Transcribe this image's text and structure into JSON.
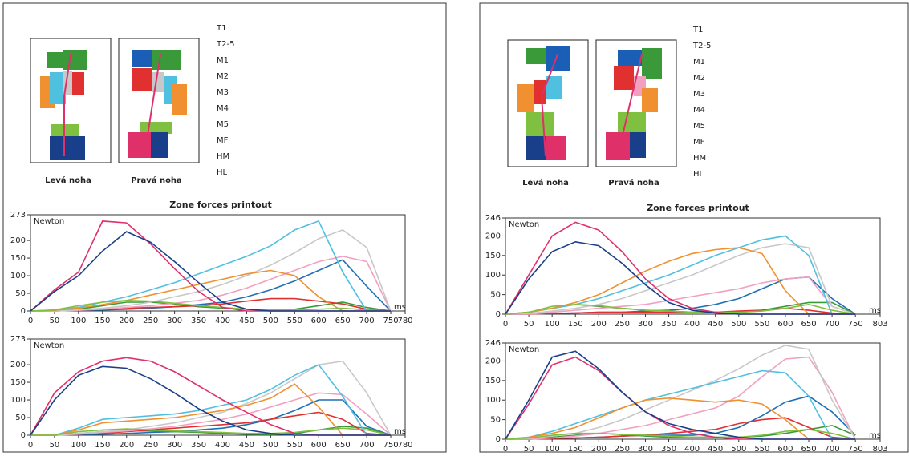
{
  "foot_labels": [
    [
      "Levá noha",
      "Pravá noha"
    ],
    [
      "Levá noha",
      "Pravá noha"
    ]
  ],
  "chart_data": [
    {
      "type": "line",
      "title": "Zone forces printout",
      "y_label": "Newton",
      "x_label": "ms",
      "x": [
        0,
        50,
        100,
        150,
        200,
        250,
        300,
        350,
        400,
        450,
        500,
        550,
        600,
        650,
        700,
        750
      ],
      "xlim": [
        0,
        780
      ],
      "xticks": [
        0,
        50,
        100,
        150,
        200,
        250,
        300,
        350,
        400,
        450,
        500,
        550,
        600,
        650,
        700,
        750,
        780
      ],
      "ylim": [
        0,
        273
      ],
      "yticks": [
        0,
        50,
        100,
        150,
        200,
        273
      ],
      "series": [
        {
          "name": "T1",
          "color": "#1f6fb5",
          "values": [
            0,
            0,
            2,
            3,
            5,
            8,
            12,
            18,
            25,
            40,
            60,
            85,
            115,
            145,
            70,
            0
          ]
        },
        {
          "name": "T2-5",
          "color": "#3a9a3a",
          "values": [
            0,
            0,
            5,
            15,
            25,
            25,
            20,
            12,
            8,
            5,
            3,
            5,
            15,
            25,
            10,
            0
          ]
        },
        {
          "name": "M1",
          "color": "#e03030",
          "values": [
            0,
            0,
            2,
            5,
            8,
            10,
            12,
            15,
            20,
            28,
            35,
            35,
            28,
            20,
            5,
            0
          ]
        },
        {
          "name": "M2",
          "color": "#f2a0c0",
          "values": [
            0,
            0,
            2,
            5,
            10,
            15,
            22,
            30,
            45,
            65,
            90,
            115,
            140,
            155,
            140,
            0
          ]
        },
        {
          "name": "M3",
          "color": "#c8c8c8",
          "values": [
            0,
            0,
            3,
            8,
            15,
            25,
            40,
            55,
            75,
            100,
            130,
            165,
            205,
            230,
            180,
            0
          ]
        },
        {
          "name": "M4",
          "color": "#50c0e0",
          "values": [
            0,
            2,
            10,
            25,
            40,
            60,
            80,
            105,
            130,
            155,
            185,
            230,
            255,
            110,
            0,
            0
          ]
        },
        {
          "name": "M5",
          "color": "#f09030",
          "values": [
            0,
            2,
            8,
            18,
            30,
            45,
            60,
            75,
            90,
            105,
            115,
            100,
            40,
            0,
            0,
            0
          ]
        },
        {
          "name": "MF",
          "color": "#80c040",
          "values": [
            0,
            3,
            15,
            25,
            30,
            28,
            22,
            15,
            10,
            5,
            3,
            3,
            5,
            8,
            3,
            0
          ]
        },
        {
          "name": "HM",
          "color": "#e0306a",
          "values": [
            0,
            60,
            110,
            255,
            250,
            190,
            120,
            55,
            10,
            0,
            0,
            0,
            0,
            0,
            0,
            0
          ]
        },
        {
          "name": "HL",
          "color": "#1a3f8a",
          "values": [
            0,
            55,
            100,
            170,
            225,
            195,
            140,
            80,
            25,
            5,
            0,
            0,
            0,
            0,
            0,
            0
          ]
        }
      ]
    },
    {
      "type": "line",
      "y_label": "Newton",
      "x_label": "ms",
      "x": [
        0,
        50,
        100,
        150,
        200,
        250,
        300,
        350,
        400,
        450,
        500,
        550,
        600,
        650,
        700,
        750
      ],
      "xlim": [
        0,
        780
      ],
      "xticks": [
        0,
        50,
        100,
        150,
        200,
        250,
        300,
        350,
        400,
        450,
        500,
        550,
        600,
        650,
        700,
        750,
        780
      ],
      "ylim": [
        0,
        273
      ],
      "yticks": [
        0,
        50,
        100,
        150,
        200,
        273
      ],
      "series": [
        {
          "name": "T1",
          "color": "#1f6fb5",
          "values": [
            0,
            0,
            2,
            3,
            5,
            8,
            10,
            15,
            20,
            30,
            45,
            70,
            100,
            100,
            25,
            0
          ]
        },
        {
          "name": "T2-5",
          "color": "#3a9a3a",
          "values": [
            0,
            0,
            5,
            10,
            12,
            12,
            10,
            8,
            5,
            3,
            2,
            5,
            15,
            25,
            20,
            0
          ]
        },
        {
          "name": "M1",
          "color": "#e03030",
          "values": [
            0,
            0,
            3,
            6,
            10,
            15,
            20,
            25,
            30,
            35,
            45,
            55,
            65,
            45,
            5,
            0
          ]
        },
        {
          "name": "M2",
          "color": "#f2a0c0",
          "values": [
            0,
            0,
            3,
            8,
            12,
            18,
            25,
            35,
            45,
            60,
            80,
            100,
            120,
            115,
            60,
            0
          ]
        },
        {
          "name": "M3",
          "color": "#c8c8c8",
          "values": [
            0,
            0,
            5,
            10,
            15,
            25,
            35,
            50,
            65,
            90,
            120,
            160,
            200,
            210,
            120,
            0
          ]
        },
        {
          "name": "M4",
          "color": "#50c0e0",
          "values": [
            0,
            0,
            20,
            45,
            50,
            55,
            60,
            70,
            85,
            100,
            130,
            170,
            200,
            110,
            0,
            0
          ]
        },
        {
          "name": "M5",
          "color": "#f09030",
          "values": [
            0,
            0,
            15,
            35,
            40,
            45,
            50,
            60,
            70,
            85,
            105,
            145,
            80,
            0,
            0,
            0
          ]
        },
        {
          "name": "MF",
          "color": "#80c040",
          "values": [
            0,
            0,
            10,
            15,
            18,
            15,
            12,
            10,
            8,
            5,
            5,
            8,
            15,
            20,
            15,
            0
          ]
        },
        {
          "name": "HM",
          "color": "#e0306a",
          "values": [
            0,
            120,
            180,
            210,
            220,
            210,
            180,
            140,
            100,
            65,
            30,
            5,
            0,
            0,
            0,
            0
          ]
        },
        {
          "name": "HL",
          "color": "#1a3f8a",
          "values": [
            0,
            100,
            170,
            195,
            190,
            160,
            120,
            75,
            40,
            15,
            5,
            0,
            0,
            0,
            0,
            0
          ]
        }
      ]
    },
    {
      "type": "line",
      "title": "Zone forces printout",
      "y_label": "Newton",
      "x_label": "ms",
      "x": [
        0,
        50,
        100,
        150,
        200,
        250,
        300,
        350,
        400,
        450,
        500,
        550,
        600,
        650,
        700,
        750
      ],
      "xlim": [
        0,
        803
      ],
      "xticks": [
        0,
        50,
        100,
        150,
        200,
        250,
        300,
        350,
        400,
        450,
        500,
        550,
        600,
        650,
        700,
        750,
        803
      ],
      "ylim": [
        0,
        246
      ],
      "yticks": [
        0,
        50,
        100,
        150,
        200,
        246
      ],
      "series": [
        {
          "name": "T1",
          "color": "#1f6fb5",
          "values": [
            0,
            0,
            2,
            3,
            5,
            5,
            8,
            10,
            15,
            25,
            40,
            65,
            90,
            95,
            40,
            0
          ]
        },
        {
          "name": "T2-5",
          "color": "#3a9a3a",
          "values": [
            0,
            5,
            15,
            25,
            20,
            15,
            10,
            8,
            5,
            5,
            5,
            10,
            20,
            30,
            30,
            0
          ]
        },
        {
          "name": "M1",
          "color": "#e03030",
          "values": [
            0,
            0,
            2,
            3,
            5,
            5,
            5,
            5,
            5,
            5,
            8,
            10,
            15,
            10,
            3,
            0
          ]
        },
        {
          "name": "M2",
          "color": "#f2a0c0",
          "values": [
            0,
            0,
            5,
            10,
            15,
            20,
            25,
            35,
            45,
            55,
            65,
            80,
            90,
            95,
            20,
            0
          ]
        },
        {
          "name": "M3",
          "color": "#c8c8c8",
          "values": [
            0,
            2,
            8,
            15,
            25,
            40,
            60,
            80,
            100,
            125,
            150,
            170,
            180,
            170,
            20,
            0
          ]
        },
        {
          "name": "M4",
          "color": "#50c0e0",
          "values": [
            0,
            5,
            15,
            25,
            40,
            60,
            80,
            100,
            125,
            150,
            170,
            190,
            200,
            150,
            0,
            0
          ]
        },
        {
          "name": "M5",
          "color": "#f09030",
          "values": [
            0,
            5,
            15,
            30,
            50,
            80,
            110,
            135,
            155,
            165,
            170,
            155,
            60,
            0,
            0,
            0
          ]
        },
        {
          "name": "MF",
          "color": "#80c040",
          "values": [
            0,
            5,
            20,
            25,
            22,
            15,
            10,
            8,
            5,
            5,
            5,
            8,
            15,
            25,
            10,
            0
          ]
        },
        {
          "name": "HM",
          "color": "#e0306a",
          "values": [
            0,
            100,
            200,
            235,
            215,
            160,
            90,
            40,
            15,
            5,
            0,
            0,
            0,
            0,
            0,
            0
          ]
        },
        {
          "name": "HL",
          "color": "#1a3f8a",
          "values": [
            0,
            90,
            160,
            185,
            175,
            130,
            75,
            30,
            10,
            3,
            0,
            0,
            0,
            0,
            0,
            0
          ]
        }
      ]
    },
    {
      "type": "line",
      "y_label": "Newton",
      "x_label": "ms",
      "x": [
        0,
        50,
        100,
        150,
        200,
        250,
        300,
        350,
        400,
        450,
        500,
        550,
        600,
        650,
        700,
        750
      ],
      "xlim": [
        0,
        803
      ],
      "xticks": [
        0,
        50,
        100,
        150,
        200,
        250,
        300,
        350,
        400,
        450,
        500,
        550,
        600,
        650,
        700,
        750,
        803
      ],
      "ylim": [
        0,
        246
      ],
      "yticks": [
        0,
        50,
        100,
        150,
        200,
        246
      ],
      "series": [
        {
          "name": "T1",
          "color": "#1f6fb5",
          "values": [
            0,
            0,
            2,
            3,
            5,
            8,
            10,
            10,
            10,
            15,
            30,
            60,
            95,
            110,
            70,
            10
          ]
        },
        {
          "name": "T2-5",
          "color": "#3a9a3a",
          "values": [
            0,
            0,
            5,
            10,
            15,
            12,
            8,
            5,
            5,
            5,
            5,
            8,
            15,
            25,
            35,
            10
          ]
        },
        {
          "name": "M1",
          "color": "#e03030",
          "values": [
            0,
            0,
            2,
            3,
            5,
            8,
            10,
            15,
            20,
            25,
            40,
            50,
            55,
            30,
            5,
            0
          ]
        },
        {
          "name": "M2",
          "color": "#f2a0c0",
          "values": [
            0,
            0,
            3,
            8,
            15,
            25,
            35,
            50,
            65,
            80,
            110,
            160,
            205,
            210,
            120,
            0
          ]
        },
        {
          "name": "M3",
          "color": "#c8c8c8",
          "values": [
            0,
            2,
            8,
            15,
            30,
            50,
            75,
            100,
            125,
            150,
            180,
            215,
            240,
            230,
            100,
            0
          ]
        },
        {
          "name": "M4",
          "color": "#50c0e0",
          "values": [
            0,
            5,
            20,
            40,
            60,
            80,
            100,
            115,
            130,
            145,
            160,
            175,
            170,
            110,
            0,
            0
          ]
        },
        {
          "name": "M5",
          "color": "#f09030",
          "values": [
            0,
            5,
            15,
            30,
            55,
            80,
            100,
            105,
            100,
            95,
            100,
            90,
            50,
            0,
            0,
            0
          ]
        },
        {
          "name": "MF",
          "color": "#80c040",
          "values": [
            0,
            3,
            10,
            15,
            15,
            12,
            10,
            8,
            5,
            5,
            5,
            10,
            20,
            25,
            15,
            0
          ]
        },
        {
          "name": "HM",
          "color": "#e0306a",
          "values": [
            0,
            90,
            190,
            210,
            175,
            120,
            70,
            35,
            15,
            5,
            0,
            0,
            0,
            0,
            0,
            0
          ]
        },
        {
          "name": "HL",
          "color": "#1a3f8a",
          "values": [
            0,
            100,
            210,
            225,
            180,
            120,
            70,
            40,
            25,
            15,
            5,
            0,
            0,
            0,
            0,
            0
          ]
        }
      ]
    }
  ]
}
